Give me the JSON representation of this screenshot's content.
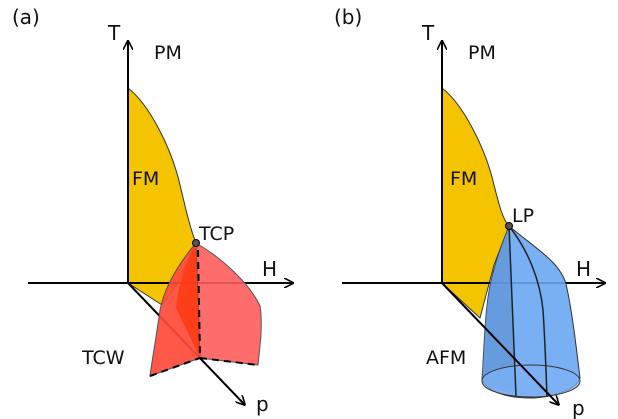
{
  "panels": [
    {
      "id": "a",
      "panel_label": "(a)",
      "axes": {
        "t": "T",
        "h": "H",
        "p": "p"
      },
      "regions": {
        "top": "PM",
        "mid": "FM",
        "bottom_left": "TCW"
      },
      "point": "TCP",
      "colors": {
        "fm": "#f5c400",
        "wing": "#ff4d4d",
        "wing_dark": "#ff3a1a",
        "outline": "#333333"
      }
    },
    {
      "id": "b",
      "panel_label": "(b)",
      "axes": {
        "t": "T",
        "h": "H",
        "p": "p"
      },
      "regions": {
        "top": "PM",
        "mid": "FM",
        "bottom_left": "AFM"
      },
      "point": "LP",
      "colors": {
        "fm": "#f5c400",
        "dome": "#6aa6f2",
        "dome_dark": "#4d8ee6",
        "outline": "#333333"
      }
    }
  ]
}
